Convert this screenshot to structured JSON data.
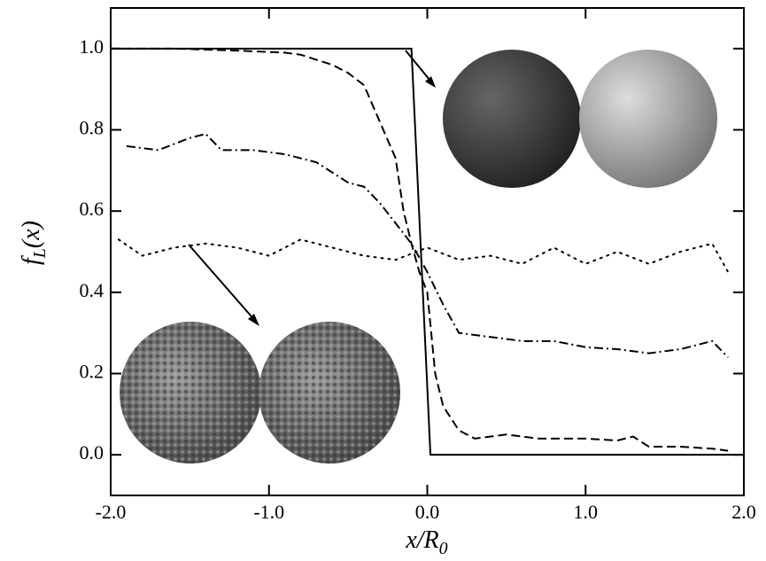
{
  "chart_data": {
    "type": "line",
    "x_label": [
      "x/R",
      "0"
    ],
    "y_label": [
      "f",
      "L",
      "(x)"
    ],
    "xlim": [
      -2.0,
      2.0
    ],
    "ylim": [
      -0.1,
      1.1
    ],
    "xticks": [
      {
        "value": -2,
        "label": "-2.0"
      },
      {
        "value": -1,
        "label": "-1.0"
      },
      {
        "value": 0,
        "label": "0.0"
      },
      {
        "value": 1,
        "label": "1.0"
      },
      {
        "value": 2,
        "label": "2.0"
      }
    ],
    "yticks": [
      {
        "value": 0,
        "label": "0.0"
      },
      {
        "value": 0.2,
        "label": "0.2"
      },
      {
        "value": 0.4,
        "label": "0.4"
      },
      {
        "value": 0.6,
        "label": "0.6"
      },
      {
        "value": 0.8,
        "label": "0.8"
      },
      {
        "value": 1,
        "label": "1.0"
      }
    ],
    "series": [
      {
        "color": "#000000",
        "dash": "solid",
        "x": [
          -2.0,
          -0.1,
          0.02,
          2.0
        ],
        "values": [
          1.0,
          1.0,
          0.0,
          0.0
        ]
      },
      {
        "color": "#000000",
        "dash": "dashed",
        "x": [
          -2.0,
          -1.6,
          -1.2,
          -0.9,
          -0.8,
          -0.6,
          -0.5,
          -0.4,
          -0.3,
          -0.2,
          -0.15,
          -0.1,
          -0.05,
          0.0,
          0.05,
          0.1,
          0.2,
          0.3,
          0.5,
          0.7,
          1.0,
          1.2,
          1.3,
          1.4,
          1.6,
          1.8,
          1.9
        ],
        "values": [
          1.0,
          1.0,
          0.995,
          0.99,
          0.985,
          0.96,
          0.94,
          0.91,
          0.82,
          0.73,
          0.6,
          0.52,
          0.45,
          0.4,
          0.2,
          0.12,
          0.06,
          0.04,
          0.05,
          0.04,
          0.04,
          0.035,
          0.045,
          0.02,
          0.02,
          0.015,
          0.01
        ]
      },
      {
        "color": "#000000",
        "dash": "dashdot",
        "x": [
          -1.9,
          -1.7,
          -1.5,
          -1.4,
          -1.3,
          -1.1,
          -0.9,
          -0.7,
          -0.5,
          -0.4,
          -0.3,
          -0.2,
          -0.1,
          0.0,
          0.1,
          0.2,
          0.4,
          0.6,
          0.8,
          1.0,
          1.2,
          1.4,
          1.6,
          1.8,
          1.9
        ],
        "values": [
          0.76,
          0.75,
          0.78,
          0.79,
          0.75,
          0.75,
          0.74,
          0.72,
          0.67,
          0.66,
          0.62,
          0.57,
          0.52,
          0.45,
          0.37,
          0.3,
          0.29,
          0.28,
          0.28,
          0.265,
          0.26,
          0.25,
          0.26,
          0.28,
          0.24
        ]
      },
      {
        "color": "#000000",
        "dash": "dotted",
        "x": [
          -1.95,
          -1.8,
          -1.6,
          -1.4,
          -1.2,
          -1.0,
          -0.8,
          -0.6,
          -0.4,
          -0.2,
          0.0,
          0.2,
          0.4,
          0.6,
          0.8,
          1.0,
          1.2,
          1.4,
          1.6,
          1.8,
          1.9
        ],
        "values": [
          0.53,
          0.49,
          0.51,
          0.52,
          0.51,
          0.49,
          0.53,
          0.51,
          0.49,
          0.48,
          0.51,
          0.48,
          0.49,
          0.47,
          0.51,
          0.47,
          0.5,
          0.47,
          0.5,
          0.52,
          0.45
        ]
      }
    ]
  }
}
